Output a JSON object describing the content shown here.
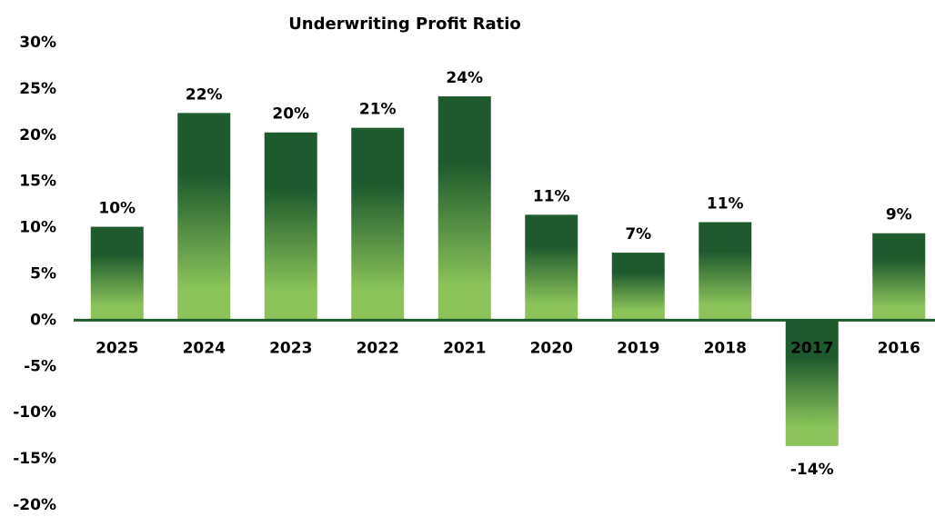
{
  "chart_data": {
    "type": "bar",
    "title": "Underwriting Profit Ratio",
    "categories": [
      "2025",
      "2024",
      "2023",
      "2022",
      "2021",
      "2020",
      "2019",
      "2018",
      "2017",
      "2016"
    ],
    "values": [
      10.1,
      22.4,
      20.3,
      20.8,
      24.2,
      11.4,
      7.3,
      10.6,
      -13.6,
      9.4
    ],
    "value_labels": [
      "10%",
      "22%",
      "20%",
      "21%",
      "24%",
      "11%",
      "7%",
      "11%",
      "-14%",
      "9%"
    ],
    "gradient": [
      "#1e5a2d",
      "#8bc35a"
    ],
    "axis_color": "#1e5a2d",
    "ylim": [
      -20,
      30
    ],
    "yticks": [
      {
        "value": -20,
        "label": "-20%"
      },
      {
        "value": -15,
        "label": "-15%"
      },
      {
        "value": -10,
        "label": "-10%"
      },
      {
        "value": -5,
        "label": "-5%"
      },
      {
        "value": 0,
        "label": "0%"
      },
      {
        "value": 5,
        "label": "5%"
      },
      {
        "value": 10,
        "label": "10%"
      },
      {
        "value": 15,
        "label": "15%"
      },
      {
        "value": 20,
        "label": "20%"
      },
      {
        "value": 25,
        "label": "25%"
      },
      {
        "value": 30,
        "label": "30%"
      }
    ],
    "grid": false
  }
}
